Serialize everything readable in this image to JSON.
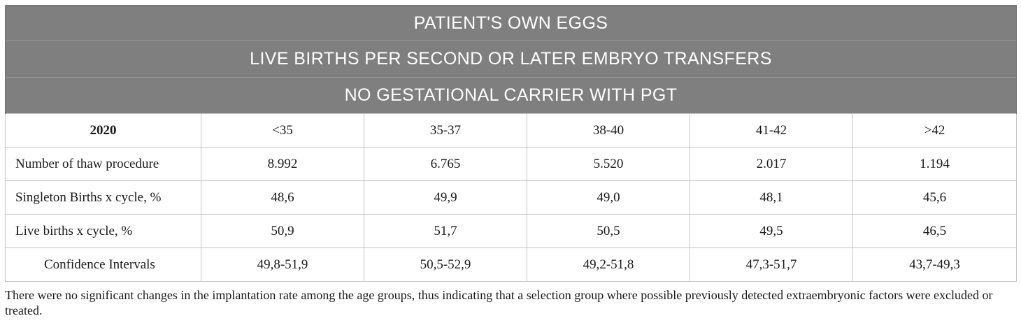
{
  "header_rows": [
    "PATIENT'S OWN EGGS",
    "LIVE BIRTHS PER SECOND OR LATER EMBRYO TRANSFERS",
    "NO GESTATIONAL CARRIER WITH PGT"
  ],
  "columns": [
    "2020",
    "<35",
    "35-37",
    "38-40",
    "41-42",
    ">42"
  ],
  "rows": [
    {
      "label": "Number of thaw procedure",
      "values": [
        "8.992",
        "6.765",
        "5.520",
        "2.017",
        "1.194"
      ]
    },
    {
      "label": "Singleton Births x cycle, %",
      "values": [
        "48,6",
        "49,9",
        "49,0",
        "48,1",
        "45,6"
      ]
    },
    {
      "label": "Live births x cycle, %",
      "values": [
        "50,9",
        "51,7",
        "50,5",
        "49,5",
        "46,5"
      ]
    },
    {
      "label": "Confidence Intervals",
      "values": [
        "49,8-51,9",
        "50,5-52,9",
        "49,2-51,8",
        "47,3-51,7",
        "43,7-49,3"
      ]
    }
  ],
  "footnote": "There were no significant changes in the implantation rate among the age groups, thus indicating that a selection group where possible previously detected extraembryonic factors were excluded or treated."
}
